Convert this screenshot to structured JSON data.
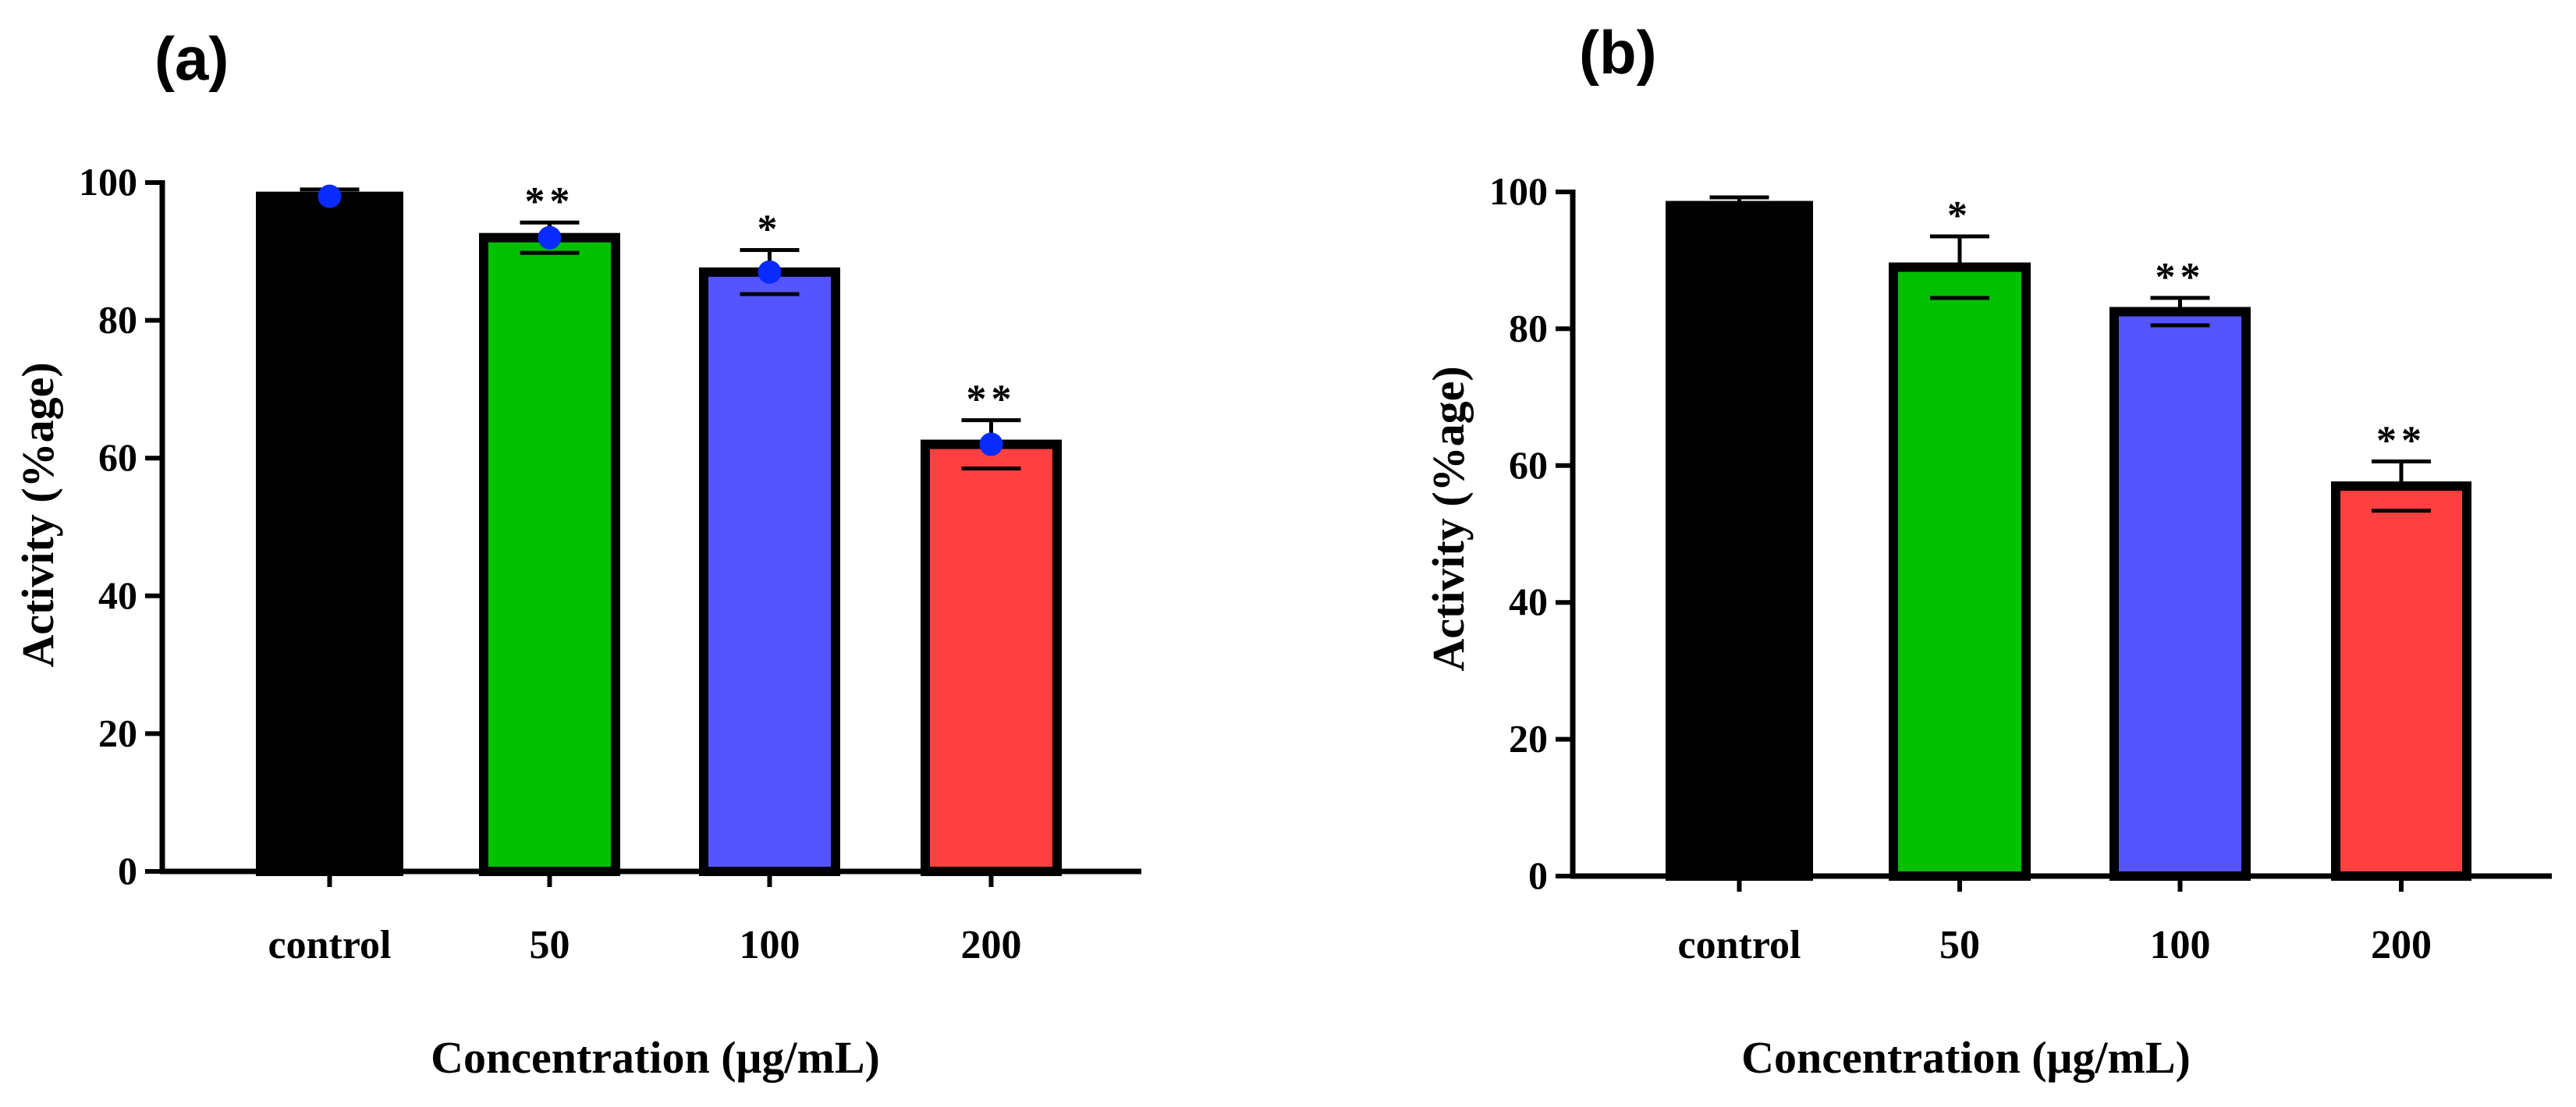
{
  "chart_data": [
    {
      "panel_label": "(a)",
      "type": "bar",
      "categories": [
        "control",
        "50",
        "100",
        "200"
      ],
      "values": [
        98,
        92,
        87,
        62
      ],
      "errors": [
        1,
        2.2,
        3.2,
        3.5
      ],
      "points": [
        98,
        92,
        87,
        62
      ],
      "significance": [
        "",
        "**",
        "*",
        "**"
      ],
      "xlabel": "Concentration (μg/mL)",
      "ylabel": "Activity (%age)",
      "ylim": [
        0,
        100
      ],
      "yticks": [
        "0",
        "20",
        "40",
        "60",
        "80",
        "100"
      ],
      "grid": false,
      "legend": "none",
      "bar_colors": [
        "#000000",
        "#00c000",
        "#5555ff",
        "#ff4040"
      ],
      "point_color": "#0a2bff"
    },
    {
      "panel_label": "(b)",
      "type": "bar",
      "categories": [
        "control",
        "50",
        "100",
        "200"
      ],
      "values": [
        98,
        89,
        82.5,
        57
      ],
      "errors": [
        1.2,
        4.5,
        2,
        3.6
      ],
      "significance": [
        "",
        "*",
        "**",
        "**"
      ],
      "xlabel": "Concentration (μg/mL)",
      "ylabel": "Activity (%age)",
      "ylim": [
        0,
        100
      ],
      "yticks": [
        "0",
        "20",
        "40",
        "60",
        "80",
        "100"
      ],
      "grid": false,
      "legend": "none",
      "bar_colors": [
        "#000000",
        "#00c000",
        "#5555ff",
        "#ff4040"
      ]
    }
  ]
}
